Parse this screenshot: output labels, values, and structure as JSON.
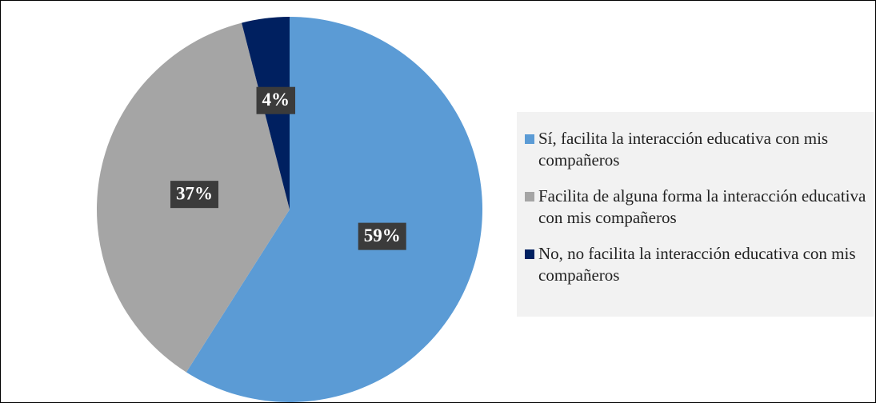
{
  "chart_data": {
    "type": "pie",
    "categories": [
      "Sí, facilita la interacción educativa con mis compañeros",
      "Facilita de alguna forma la interacción educativa con mis compañeros",
      "No, no facilita la interacción educativa con mis compañeros"
    ],
    "values": [
      59,
      37,
      4
    ],
    "value_labels": [
      "59%",
      "37%",
      "4%"
    ],
    "colors": [
      "#5b9bd5",
      "#a5a5a5",
      "#002060"
    ],
    "legend": "right"
  }
}
